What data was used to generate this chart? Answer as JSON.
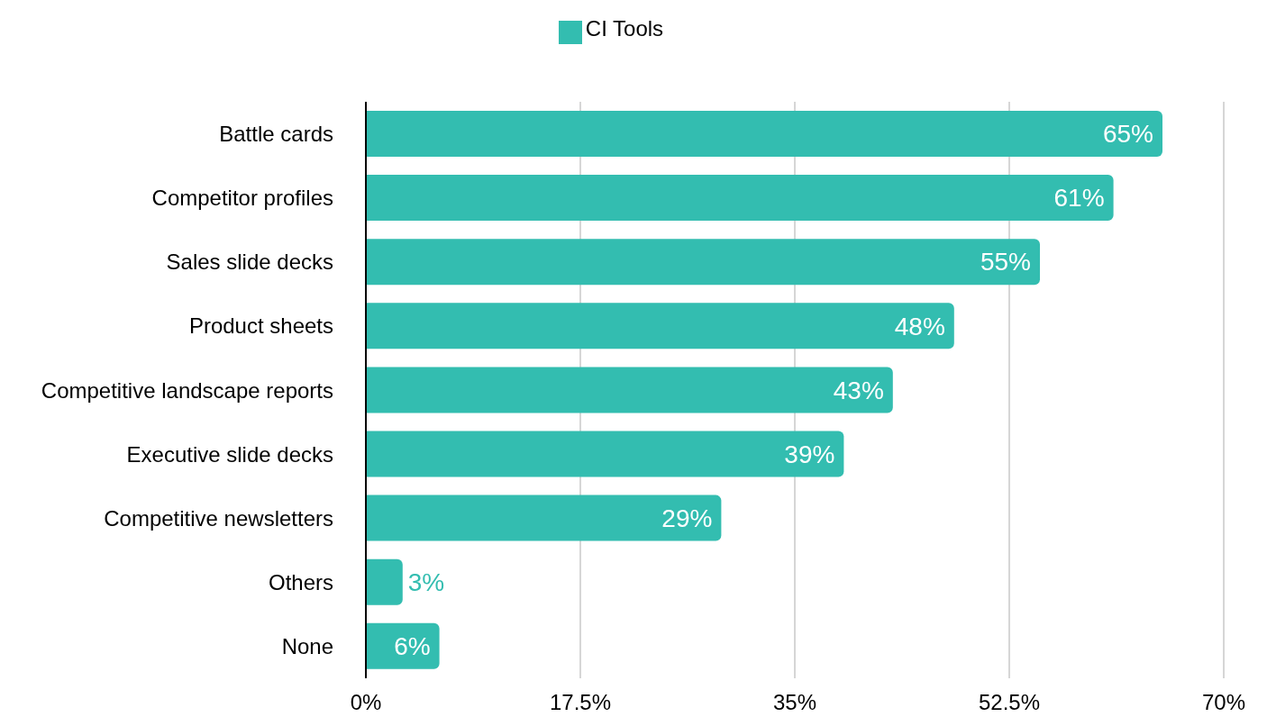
{
  "chart_data": {
    "type": "bar",
    "orientation": "horizontal",
    "categories": [
      "Battle cards",
      "Competitor profiles",
      "Sales slide decks",
      "Product sheets",
      "Competitive landscape reports",
      "Executive slide decks",
      "Competitive newsletters",
      "Others",
      "None"
    ],
    "series": [
      {
        "name": "CI Tools",
        "color": "#33bdb0",
        "values": [
          65,
          61,
          55,
          48,
          43,
          39,
          29,
          3,
          6
        ],
        "value_labels": [
          "65%",
          "61%",
          "55%",
          "48%",
          "43%",
          "39%",
          "29%",
          "3%",
          "6%"
        ]
      }
    ],
    "xlim": [
      0,
      70
    ],
    "xticks": [
      {
        "value": 0,
        "label": "0%"
      },
      {
        "value": 17.5,
        "label": "17.5%"
      },
      {
        "value": 35,
        "label": "35%"
      },
      {
        "value": 52.5,
        "label": "52.5%"
      },
      {
        "value": 70,
        "label": "70%"
      }
    ],
    "grid": "x",
    "legend": "top"
  }
}
